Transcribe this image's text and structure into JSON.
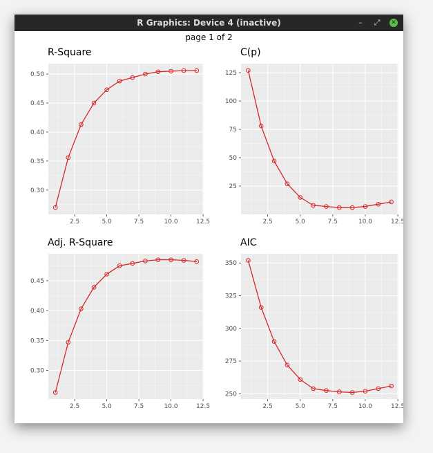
{
  "window": {
    "title": "R Graphics: Device 4 (inactive)",
    "controls": {
      "minimize": "–",
      "restore": "⤢",
      "close": "✕"
    }
  },
  "page_label": "page 1 of 2",
  "style": {
    "panel_bg": "#ebebeb",
    "grid_major": "#ffffff",
    "line_color": "#d62728",
    "tick_color": "#4d4d4d"
  },
  "chart_data": [
    {
      "type": "line",
      "title": "R-Square",
      "x": [
        1,
        2,
        3,
        4,
        5,
        6,
        7,
        8,
        9,
        10,
        11,
        12
      ],
      "y": [
        0.27,
        0.356,
        0.413,
        0.45,
        0.473,
        0.488,
        0.494,
        0.5,
        0.504,
        0.505,
        0.506,
        0.506
      ],
      "xlim": [
        0.45,
        12.55
      ],
      "ylim": [
        0.258,
        0.518
      ],
      "xticks": [
        2.5,
        5.0,
        7.5,
        10.0,
        12.5
      ],
      "xtick_labels": [
        "2.5",
        "5.0",
        "7.5",
        "10.0",
        "12.5"
      ],
      "yticks": [
        0.3,
        0.35,
        0.4,
        0.45,
        0.5
      ],
      "ytick_labels": [
        "0.30",
        "0.35",
        "0.40",
        "0.45",
        "0.50"
      ],
      "markers": "open-circle",
      "grid": true
    },
    {
      "type": "line",
      "title": "C(p)",
      "x": [
        1,
        2,
        3,
        4,
        5,
        6,
        7,
        8,
        9,
        10,
        11,
        12
      ],
      "y": [
        127,
        78,
        47,
        27,
        15,
        8,
        7,
        6,
        6,
        7,
        9,
        11
      ],
      "xlim": [
        0.45,
        12.55
      ],
      "ylim": [
        0,
        133
      ],
      "xticks": [
        2.5,
        5.0,
        7.5,
        10.0,
        12.5
      ],
      "xtick_labels": [
        "2.5",
        "5.0",
        "7.5",
        "10.0",
        "12.5"
      ],
      "yticks": [
        25,
        50,
        75,
        100,
        125
      ],
      "ytick_labels": [
        "25",
        "50",
        "75",
        "100",
        "125"
      ],
      "markers": "open-circle",
      "grid": true
    },
    {
      "type": "line",
      "title": "Adj. R-Square",
      "x": [
        1,
        2,
        3,
        4,
        5,
        6,
        7,
        8,
        9,
        10,
        11,
        12
      ],
      "y": [
        0.263,
        0.347,
        0.403,
        0.439,
        0.461,
        0.475,
        0.479,
        0.483,
        0.485,
        0.485,
        0.484,
        0.482
      ],
      "xlim": [
        0.45,
        12.55
      ],
      "ylim": [
        0.252,
        0.495
      ],
      "xticks": [
        2.5,
        5.0,
        7.5,
        10.0,
        12.5
      ],
      "xtick_labels": [
        "2.5",
        "5.0",
        "7.5",
        "10.0",
        "12.5"
      ],
      "yticks": [
        0.3,
        0.35,
        0.4,
        0.45
      ],
      "ytick_labels": [
        "0.30",
        "0.35",
        "0.40",
        "0.45"
      ],
      "markers": "open-circle",
      "grid": true
    },
    {
      "type": "line",
      "title": "AIC",
      "x": [
        1,
        2,
        3,
        4,
        5,
        6,
        7,
        8,
        9,
        10,
        11,
        12
      ],
      "y": [
        352,
        316,
        290,
        272,
        261,
        254,
        252.5,
        251.5,
        251,
        252,
        254,
        256
      ],
      "xlim": [
        0.45,
        12.55
      ],
      "ylim": [
        246,
        357
      ],
      "xticks": [
        2.5,
        5.0,
        7.5,
        10.0,
        12.5
      ],
      "xtick_labels": [
        "2.5",
        "5.0",
        "7.5",
        "10.0",
        "12.5"
      ],
      "yticks": [
        250,
        275,
        300,
        325,
        350
      ],
      "ytick_labels": [
        "250",
        "275",
        "300",
        "325",
        "350"
      ],
      "markers": "open-circle",
      "grid": true
    }
  ]
}
